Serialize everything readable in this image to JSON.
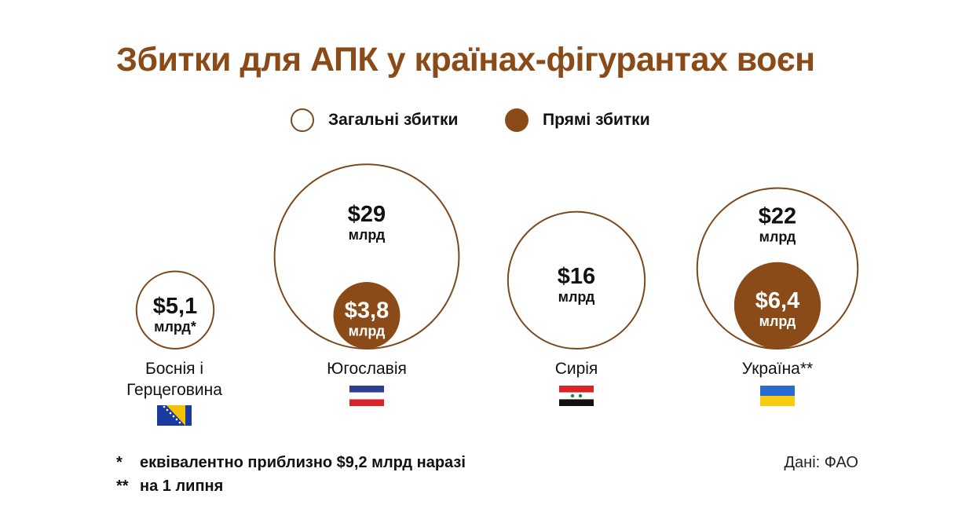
{
  "header": {
    "title": "Збитки для АПК у країнах-фігурантах воєн"
  },
  "legend": {
    "total_label": "Загальні збитки",
    "direct_label": "Прямі збитки"
  },
  "colors": {
    "accent": "#8a4b18",
    "outline": "#7a4a1e",
    "text": "#111111"
  },
  "chart_data": {
    "type": "bubble",
    "title": "Збитки для АПК у країнах-фігурантах воєн",
    "unit": "млрд $",
    "series": [
      {
        "name": "Загальні збитки",
        "values": [
          5.1,
          29,
          16,
          22
        ]
      },
      {
        "name": "Прямі збитки",
        "values": [
          null,
          3.8,
          null,
          6.4
        ]
      }
    ],
    "categories": [
      "Боснія і Герцеговина",
      "Югославія",
      "Сирія",
      "Україна**"
    ],
    "items": [
      {
        "country": "Боснія і Герцеговина",
        "total": 5.1,
        "total_label": "$5,1",
        "total_unit": "млрд*",
        "direct": null
      },
      {
        "country": "Югославія",
        "total": 29,
        "total_label": "$29",
        "total_unit": "млрд",
        "direct": 3.8,
        "direct_label": "$3,8",
        "direct_unit": "млрд"
      },
      {
        "country": "Сирія",
        "total": 16,
        "total_label": "$16",
        "total_unit": "млрд",
        "direct": null
      },
      {
        "country": "Україна**",
        "total": 22,
        "total_label": "$22",
        "total_unit": "млрд",
        "direct": 6.4,
        "direct_label": "$6,4",
        "direct_unit": "млрд"
      }
    ]
  },
  "countries": [
    {
      "name_line1": "Боснія і",
      "name_line2": "Герцеговина",
      "flag_icon": "flag-bosnia-icon"
    },
    {
      "name_line1": "Югославія",
      "flag_icon": "flag-yugoslavia-icon"
    },
    {
      "name_line1": "Сирія",
      "flag_icon": "flag-syria-icon"
    },
    {
      "name_line1": "Україна**",
      "flag_icon": "flag-ukraine-icon"
    }
  ],
  "footnotes": {
    "note1_mark": "*",
    "note1_text": "еквівалентно приблизно $9,2 млрд наразі",
    "note2_mark": "**",
    "note2_text": "на 1 липня"
  },
  "source": "Дані: ФАО"
}
